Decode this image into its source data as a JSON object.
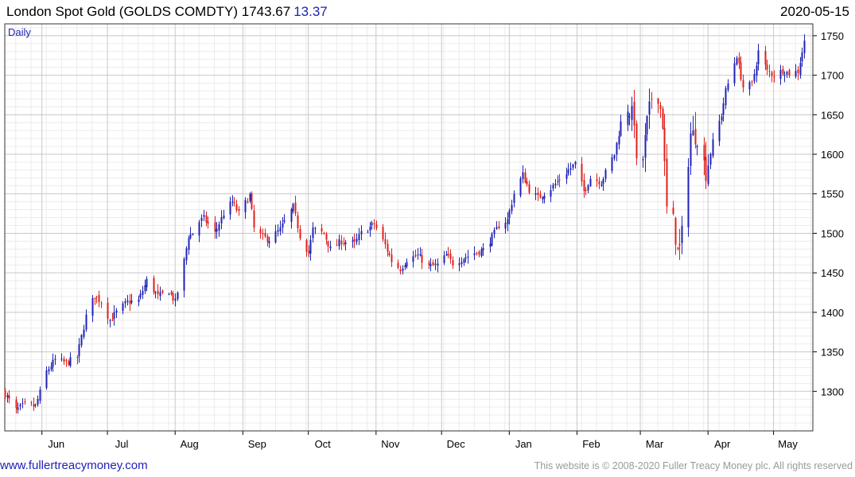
{
  "header": {
    "title": "London Spot Gold (GOLDS COMDTY)",
    "last": "1743.67",
    "change": "13.37",
    "date": "2020-05-15"
  },
  "footer": {
    "website": "www.fullertreacymoney.com",
    "copyright": "This website is © 2008-2020 Fuller Treacy Money plc. All rights reserved"
  },
  "colors": {
    "up": "#1f22b6",
    "down": "#e0201b",
    "grid_major": "#c8c8c8",
    "grid_minor": "#ececec"
  },
  "chart_data": {
    "type": "candlestick",
    "frequency": "Daily",
    "y_ticks": [
      1300,
      1350,
      1400,
      1450,
      1500,
      1550,
      1600,
      1650,
      1700,
      1750
    ],
    "x_tick_labels": [
      "Jun",
      "Jul",
      "Aug",
      "Sep",
      "Oct",
      "Nov",
      "Dec",
      "Jan",
      "Feb",
      "Mar",
      "Apr",
      "May"
    ],
    "ylim": [
      1250,
      1765
    ],
    "xlim": [
      "2019-05-15",
      "2020-05-19"
    ],
    "grid": true,
    "y_axis_position": "right",
    "month_starts": [
      "2019-06-01",
      "2019-07-01",
      "2019-08-01",
      "2019-09-01",
      "2019-10-01",
      "2019-11-01",
      "2019-12-01",
      "2020-01-01",
      "2020-02-01",
      "2020-03-01",
      "2020-04-01",
      "2020-05-01"
    ],
    "anchors": [
      [
        "2019-05-15",
        1297
      ],
      [
        "2019-05-20",
        1276
      ],
      [
        "2019-05-24",
        1283
      ],
      [
        "2019-05-29",
        1281
      ],
      [
        "2019-06-03",
        1325
      ],
      [
        "2019-06-07",
        1340
      ],
      [
        "2019-06-12",
        1336
      ],
      [
        "2019-06-17",
        1343
      ],
      [
        "2019-06-21",
        1395
      ],
      [
        "2019-06-25",
        1421
      ],
      [
        "2019-06-28",
        1413
      ],
      [
        "2019-07-02",
        1390
      ],
      [
        "2019-07-05",
        1400
      ],
      [
        "2019-07-10",
        1413
      ],
      [
        "2019-07-15",
        1415
      ],
      [
        "2019-07-19",
        1440
      ],
      [
        "2019-07-24",
        1420
      ],
      [
        "2019-07-29",
        1427
      ],
      [
        "2019-08-01",
        1413
      ],
      [
        "2019-08-05",
        1465
      ],
      [
        "2019-08-07",
        1497
      ],
      [
        "2019-08-09",
        1500
      ],
      [
        "2019-08-12",
        1515
      ],
      [
        "2019-08-14",
        1519
      ],
      [
        "2019-08-19",
        1500
      ],
      [
        "2019-08-23",
        1525
      ],
      [
        "2019-08-27",
        1540
      ],
      [
        "2019-08-30",
        1525
      ],
      [
        "2019-09-04",
        1548
      ],
      [
        "2019-09-06",
        1506
      ],
      [
        "2019-09-10",
        1495
      ],
      [
        "2019-09-13",
        1492
      ],
      [
        "2019-09-18",
        1505
      ],
      [
        "2019-09-24",
        1533
      ],
      [
        "2019-09-27",
        1497
      ],
      [
        "2019-10-01",
        1475
      ],
      [
        "2019-10-03",
        1505
      ],
      [
        "2019-10-08",
        1500
      ],
      [
        "2019-10-11",
        1480
      ],
      [
        "2019-10-16",
        1490
      ],
      [
        "2019-10-22",
        1487
      ],
      [
        "2019-10-25",
        1500
      ],
      [
        "2019-10-31",
        1512
      ],
      [
        "2019-11-05",
        1485
      ],
      [
        "2019-11-08",
        1465
      ],
      [
        "2019-11-12",
        1455
      ],
      [
        "2019-11-15",
        1467
      ],
      [
        "2019-11-20",
        1472
      ],
      [
        "2019-11-25",
        1458
      ],
      [
        "2019-11-29",
        1460
      ],
      [
        "2019-12-03",
        1472
      ],
      [
        "2019-12-06",
        1462
      ],
      [
        "2019-12-11",
        1469
      ],
      [
        "2019-12-16",
        1475
      ],
      [
        "2019-12-20",
        1479
      ],
      [
        "2019-12-24",
        1495
      ],
      [
        "2019-12-27",
        1510
      ],
      [
        "2019-12-31",
        1517
      ],
      [
        "2020-01-03",
        1550
      ],
      [
        "2020-01-07",
        1574
      ],
      [
        "2020-01-10",
        1555
      ],
      [
        "2020-01-14",
        1545
      ],
      [
        "2020-01-20",
        1557
      ],
      [
        "2020-01-24",
        1568
      ],
      [
        "2020-01-28",
        1580
      ],
      [
        "2020-01-31",
        1588
      ],
      [
        "2020-02-04",
        1553
      ],
      [
        "2020-02-07",
        1570
      ],
      [
        "2020-02-12",
        1565
      ],
      [
        "2020-02-18",
        1600
      ],
      [
        "2020-02-21",
        1640
      ],
      [
        "2020-02-24",
        1660
      ],
      [
        "2020-02-27",
        1645
      ],
      [
        "2020-02-28",
        1585
      ],
      [
        "2020-03-02",
        1595
      ],
      [
        "2020-03-04",
        1640
      ],
      [
        "2020-03-06",
        1672
      ],
      [
        "2020-03-09",
        1675
      ],
      [
        "2020-03-11",
        1640
      ],
      [
        "2020-03-13",
        1530
      ],
      [
        "2020-03-16",
        1515
      ],
      [
        "2020-03-18",
        1476
      ],
      [
        "2020-03-19",
        1480
      ],
      [
        "2020-03-20",
        1499
      ],
      [
        "2020-03-24",
        1626
      ],
      [
        "2020-03-27",
        1622
      ],
      [
        "2020-03-31",
        1577
      ],
      [
        "2020-04-03",
        1615
      ],
      [
        "2020-04-07",
        1650
      ],
      [
        "2020-04-09",
        1680
      ],
      [
        "2020-04-14",
        1725
      ],
      [
        "2020-04-17",
        1685
      ],
      [
        "2020-04-21",
        1688
      ],
      [
        "2020-04-24",
        1730
      ],
      [
        "2020-04-28",
        1705
      ],
      [
        "2020-05-01",
        1700
      ],
      [
        "2020-05-05",
        1706
      ],
      [
        "2020-05-08",
        1702
      ],
      [
        "2020-05-12",
        1705
      ],
      [
        "2020-05-14",
        1730
      ],
      [
        "2020-05-15",
        1743.67
      ]
    ]
  }
}
